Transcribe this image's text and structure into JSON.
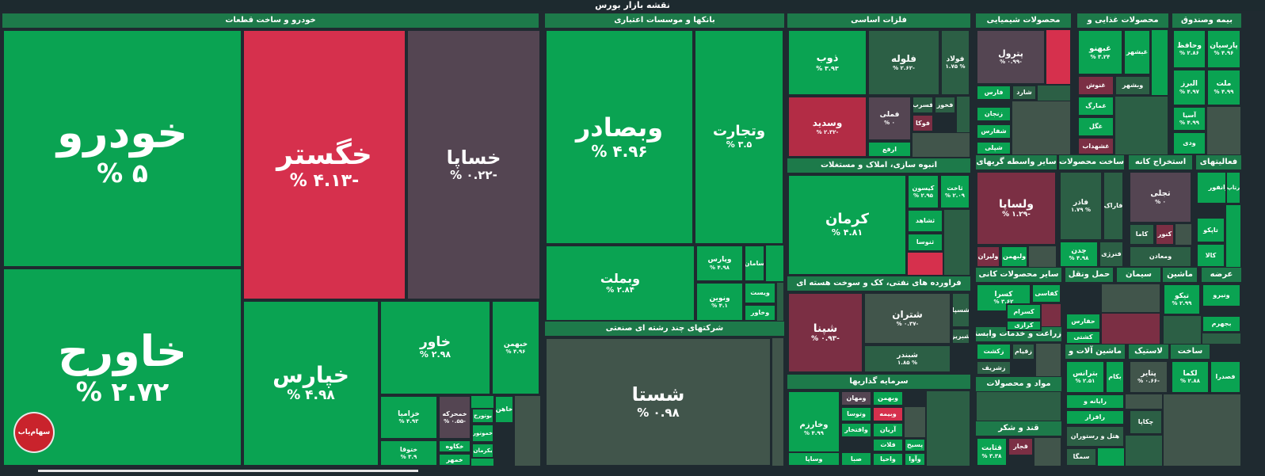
{
  "header": {
    "title": "نقشه بازار بورس"
  },
  "sectors": [
    {
      "id": "s1",
      "label": "خودرو و ساخت قطعات"
    },
    {
      "id": "s2",
      "label": "بانکها و موسسات اعتباری"
    },
    {
      "id": "s3",
      "label": "فلزات اساسی"
    },
    {
      "id": "s4",
      "label": "محصولات شیمیایی"
    },
    {
      "id": "s5",
      "label": "محصولات غذایی و"
    },
    {
      "id": "s6",
      "label": "بیمه وصندوق"
    },
    {
      "id": "s7",
      "label": "شرکتهای چند رشته ای صنعتی"
    },
    {
      "id": "s8",
      "label": "انبوه سازی، املاک و مستغلات"
    },
    {
      "id": "s9",
      "label": "سایر واسطه گریهای"
    },
    {
      "id": "s10",
      "label": "ساخت محصولات"
    },
    {
      "id": "s11",
      "label": "استخراج کانه"
    },
    {
      "id": "s12",
      "label": "فعالیتهای"
    },
    {
      "id": "s13",
      "label": "فراورده های نفتی، کک و سوخت هسته ای"
    },
    {
      "id": "s14",
      "label": "سایر محصولات کانی"
    },
    {
      "id": "s15",
      "label": "حمل ونقل"
    },
    {
      "id": "s16",
      "label": "سیمان"
    },
    {
      "id": "s17",
      "label": "ماشین"
    },
    {
      "id": "s18",
      "label": "عرضه"
    },
    {
      "id": "s19",
      "label": "زراعت و خدمات وابسته"
    },
    {
      "id": "s20",
      "label": "ماشین آلات و"
    },
    {
      "id": "s21",
      "label": "لاستیک"
    },
    {
      "id": "s22",
      "label": "ساخت"
    },
    {
      "id": "s23",
      "label": "مواد و محصولات"
    },
    {
      "id": "s24",
      "label": "سرمایه گذاریها"
    },
    {
      "id": "s25",
      "label": "قند و شکر"
    }
  ],
  "tiles": [
    {
      "id": "t1",
      "name": "خودرو",
      "pct": "% ۵",
      "color": "#0aa352"
    },
    {
      "id": "t2",
      "name": "خگستر",
      "pct": "% ۴.۱۳-",
      "color": "#d6304d"
    },
    {
      "id": "t3",
      "name": "خساپا",
      "pct": "% ۰.۲۲-",
      "color": "#544552"
    },
    {
      "id": "t4",
      "name": "خاورح",
      "pct": "% ۲.۷۲",
      "color": "#0aa352"
    },
    {
      "id": "t5",
      "name": "خپارس",
      "pct": "% ۴.۹۸",
      "color": "#0aa352"
    },
    {
      "id": "t6",
      "name": "خاور",
      "pct": "% ۲.۹۸",
      "color": "#0aa352"
    },
    {
      "id": "t7",
      "name": "خبهمن",
      "pct": "% ۴.۹۶",
      "color": "#0aa352"
    },
    {
      "id": "t8",
      "name": "خزامیا",
      "pct": "% ۴.۹۳",
      "color": "#0aa352"
    },
    {
      "id": "t9",
      "name": "خمحرکه",
      "pct": "% ۰.۵۵-",
      "color": "#544552"
    },
    {
      "id": "t10",
      "name": "خکاوه",
      "pct": "",
      "color": "#0aa352"
    },
    {
      "id": "t11",
      "name": "خموتور",
      "pct": "",
      "color": "#0aa352"
    },
    {
      "id": "t12",
      "name": "ختوقا",
      "pct": "% ۳.۹",
      "color": "#0aa352"
    },
    {
      "id": "t13",
      "name": "خمهر",
      "pct": "",
      "color": "#0aa352"
    },
    {
      "id": "t14",
      "name": "خاهن",
      "pct": "",
      "color": "#0aa352"
    },
    {
      "id": "t15",
      "name": "بوتورح",
      "pct": "",
      "color": "#0aa352"
    },
    {
      "id": "t16",
      "name": "بکرمان",
      "pct": "",
      "color": "#0aa352"
    },
    {
      "id": "t17",
      "name": "وبصادر",
      "pct": "% ۴.۹۶",
      "color": "#0aa352"
    },
    {
      "id": "t18",
      "name": "وتجارت",
      "pct": "% ۳.۵",
      "color": "#0aa352"
    },
    {
      "id": "t19",
      "name": "وبملت",
      "pct": "% ۲.۸۴",
      "color": "#0aa352"
    },
    {
      "id": "t20",
      "name": "وپارس",
      "pct": "% ۴.۹۸",
      "color": "#0aa352"
    },
    {
      "id": "t21",
      "name": "سامان",
      "pct": "",
      "color": "#0aa352"
    },
    {
      "id": "t22",
      "name": "ونوین",
      "pct": "% ۴.۱",
      "color": "#0aa352"
    },
    {
      "id": "t23",
      "name": "ویست",
      "pct": "",
      "color": "#0aa352"
    },
    {
      "id": "t24",
      "name": "وخاور",
      "pct": "",
      "color": "#0aa352"
    },
    {
      "id": "t25",
      "name": "شستا",
      "pct": "% ۰.۹۸",
      "color": "#41554b"
    },
    {
      "id": "t26",
      "name": "ذوب",
      "pct": "% ۳.۹۳",
      "color": "#0aa352"
    },
    {
      "id": "t27",
      "name": "فلوله",
      "pct": "% ۲.۶۲-",
      "color": "#2c5f45"
    },
    {
      "id": "t28",
      "name": "فولاد",
      "pct": "۱.۷۵ %",
      "color": "#2c5f45"
    },
    {
      "id": "t29",
      "name": "وسدید",
      "pct": "% ۲.۳۲-",
      "color": "#b32c45"
    },
    {
      "id": "t30",
      "name": "فملی",
      "pct": "% ۰",
      "color": "#544552"
    },
    {
      "id": "t31",
      "name": "فسرب",
      "pct": "",
      "color": "#2c5f45"
    },
    {
      "id": "t32",
      "name": "فخوز",
      "pct": "",
      "color": "#2c5f45"
    },
    {
      "id": "t33",
      "name": "فوکا",
      "pct": "",
      "color": "#7b2f44"
    },
    {
      "id": "t34",
      "name": "ارفع",
      "pct": "",
      "color": "#0aa352"
    },
    {
      "id": "t35",
      "name": "پترول",
      "pct": "% ۰.۹۹-",
      "color": "#544552"
    },
    {
      "id": "t36",
      "name": "فارس",
      "pct": "",
      "color": "#0aa352"
    },
    {
      "id": "t37",
      "name": "شارد",
      "pct": "",
      "color": "#2c5f45"
    },
    {
      "id": "t38",
      "name": "زنجان",
      "pct": "",
      "color": "#0aa352"
    },
    {
      "id": "t39",
      "name": "شفارس",
      "pct": "",
      "color": "#0aa352"
    },
    {
      "id": "t40",
      "name": "شپلی",
      "pct": "",
      "color": "#0aa352"
    },
    {
      "id": "t41",
      "name": "غبهنو",
      "pct": "% ۳.۲۴",
      "color": "#0aa352"
    },
    {
      "id": "t42",
      "name": "غبشهر",
      "pct": "",
      "color": "#0aa352"
    },
    {
      "id": "t43",
      "name": "غنوش",
      "pct": "",
      "color": "#7b2f44"
    },
    {
      "id": "t44",
      "name": "وبشهر",
      "pct": "",
      "color": "#2c5f45"
    },
    {
      "id": "t45",
      "name": "غمارگ",
      "pct": "",
      "color": "#0aa352"
    },
    {
      "id": "t46",
      "name": "غگل",
      "pct": "",
      "color": "#0aa352"
    },
    {
      "id": "t47",
      "name": "غشهداب",
      "pct": "",
      "color": "#7b2f44"
    },
    {
      "id": "t48",
      "name": "وحافظ",
      "pct": "% ۲.۸۶",
      "color": "#0aa352"
    },
    {
      "id": "t49",
      "name": "پارسیان",
      "pct": "% ۴.۹۶",
      "color": "#0aa352"
    },
    {
      "id": "t50",
      "name": "البرز",
      "pct": "% ۴.۹۷",
      "color": "#0aa352"
    },
    {
      "id": "t51",
      "name": "ملت",
      "pct": "% ۴.۹۹",
      "color": "#0aa352"
    },
    {
      "id": "t52",
      "name": "آسیا",
      "pct": "% ۴.۹۹",
      "color": "#0aa352"
    },
    {
      "id": "t53",
      "name": "ودی",
      "pct": "",
      "color": "#0aa352"
    },
    {
      "id": "t54",
      "name": "کرمان",
      "pct": "% ۴.۸۱",
      "color": "#0aa352"
    },
    {
      "id": "t55",
      "name": "کیسون",
      "pct": "% ۲.۹۵",
      "color": "#0aa352"
    },
    {
      "id": "t56",
      "name": "ثاخت",
      "pct": "% ۲.۰۹",
      "color": "#0aa352"
    },
    {
      "id": "t57",
      "name": "ثشاهد",
      "pct": "",
      "color": "#0aa352"
    },
    {
      "id": "t58",
      "name": "ثنوسا",
      "pct": "",
      "color": "#0aa352"
    },
    {
      "id": "t59",
      "name": "ولساپا",
      "pct": "% ۱.۲۹-",
      "color": "#7b2f44"
    },
    {
      "id": "t60",
      "name": "ولیران",
      "pct": "",
      "color": "#7b2f44"
    },
    {
      "id": "t61",
      "name": "ولبهمن",
      "pct": "",
      "color": "#0aa352"
    },
    {
      "id": "t62",
      "name": "فاذر",
      "pct": "۱.۷۹ %",
      "color": "#2c5f45"
    },
    {
      "id": "t63",
      "name": "فاراک",
      "pct": "",
      "color": "#2c5f45"
    },
    {
      "id": "t64",
      "name": "چدن",
      "pct": "% ۴.۹۸",
      "color": "#0aa352"
    },
    {
      "id": "t65",
      "name": "فنرژی",
      "pct": "",
      "color": "#2c5f45"
    },
    {
      "id": "t66",
      "name": "تجلی",
      "pct": "% ۰",
      "color": "#544552"
    },
    {
      "id": "t67",
      "name": "کاما",
      "pct": "",
      "color": "#2c5f45"
    },
    {
      "id": "t68",
      "name": "کنور",
      "pct": "",
      "color": "#7b2f44"
    },
    {
      "id": "t69",
      "name": "ومعادن",
      "pct": "",
      "color": "#2c5f45"
    },
    {
      "id": "t70",
      "name": "رانفور",
      "pct": "",
      "color": "#0aa352"
    },
    {
      "id": "t71",
      "name": "رتاپ",
      "pct": "",
      "color": "#0aa352"
    },
    {
      "id": "t72",
      "name": "تاپکو",
      "pct": "",
      "color": "#0aa352"
    },
    {
      "id": "t73",
      "name": "کالا",
      "pct": "",
      "color": "#0aa352"
    },
    {
      "id": "t74",
      "name": "شپنا",
      "pct": "% ۰.۹۳-",
      "color": "#7b2f44"
    },
    {
      "id": "t75",
      "name": "شتران",
      "pct": "% ۰.۳۷-",
      "color": "#41554b"
    },
    {
      "id": "t76",
      "name": "شسپا",
      "pct": "",
      "color": "#2c5f45"
    },
    {
      "id": "t77",
      "name": "شبریز",
      "pct": "",
      "color": "#2c5f45"
    },
    {
      "id": "t78",
      "name": "شبندر",
      "pct": "۱.۸۵ %",
      "color": "#2c5f45"
    },
    {
      "id": "t79",
      "name": "کسرا",
      "pct": "% ۳.۶۲",
      "color": "#0aa352"
    },
    {
      "id": "t80",
      "name": "کفاسی",
      "pct": "",
      "color": "#0aa352"
    },
    {
      "id": "t81",
      "name": "کسرام",
      "pct": "",
      "color": "#0aa352"
    },
    {
      "id": "t82",
      "name": "کرازی",
      "pct": "",
      "color": "#0aa352"
    },
    {
      "id": "t83",
      "name": "زکشت",
      "pct": "",
      "color": "#0aa352"
    },
    {
      "id": "t84",
      "name": "زقیام",
      "pct": "",
      "color": "#2c5f45"
    },
    {
      "id": "t85",
      "name": "زشریف",
      "pct": "",
      "color": "#2c5f45"
    },
    {
      "id": "t86",
      "name": "حفارس",
      "pct": "",
      "color": "#0aa352"
    },
    {
      "id": "t87",
      "name": "کشتی",
      "pct": "",
      "color": "#0aa352"
    },
    {
      "id": "t88",
      "name": "تیکو",
      "pct": "% ۲.۹۹",
      "color": "#0aa352"
    },
    {
      "id": "t89",
      "name": "ونیرو",
      "pct": "",
      "color": "#0aa352"
    },
    {
      "id": "t90",
      "name": "بجهرم",
      "pct": "",
      "color": "#0aa352"
    },
    {
      "id": "t91",
      "name": "رکیش",
      "pct": "",
      "color": "#0aa352"
    },
    {
      "id": "t92",
      "name": "بترانس",
      "pct": "% ۲.۵۱",
      "color": "#0aa352"
    },
    {
      "id": "t93",
      "name": "بکام",
      "pct": "",
      "color": "#0aa352"
    },
    {
      "id": "t94",
      "name": "پتایر",
      "pct": "% ۰.۶۶-",
      "color": "#41554b"
    },
    {
      "id": "t95",
      "name": "لکما",
      "pct": "% ۲.۸۸",
      "color": "#0aa352"
    },
    {
      "id": "t96",
      "name": "فصدرا",
      "pct": "",
      "color": "#0aa352"
    },
    {
      "id": "t97",
      "name": "رایانه و",
      "pct": "",
      "color": "#0aa352"
    },
    {
      "id": "t98",
      "name": "رافزار",
      "pct": "",
      "color": "#0aa352"
    },
    {
      "id": "t99",
      "name": "چکاپا",
      "pct": "",
      "color": "#2c5f45"
    },
    {
      "id": "t100",
      "name": "وخارزم",
      "pct": "% ۴.۹۹",
      "color": "#0aa352"
    },
    {
      "id": "t101",
      "name": "ومهان",
      "pct": "",
      "color": "#544552"
    },
    {
      "id": "t102",
      "name": "وبهمن",
      "pct": "",
      "color": "#0aa352"
    },
    {
      "id": "t103",
      "name": "وتوسا",
      "pct": "",
      "color": "#0aa352"
    },
    {
      "id": "t104",
      "name": "وبیمه",
      "pct": "",
      "color": "#d6304d"
    },
    {
      "id": "t105",
      "name": "وافتخار",
      "pct": "",
      "color": "#0aa352"
    },
    {
      "id": "t106",
      "name": "آریان",
      "pct": "",
      "color": "#0aa352"
    },
    {
      "id": "t107",
      "name": "ومعادن",
      "pct": "",
      "color": "#0aa352"
    },
    {
      "id": "t108",
      "name": "فلات",
      "pct": "",
      "color": "#0aa352"
    },
    {
      "id": "t109",
      "name": "پسیح",
      "pct": "",
      "color": "#0aa352"
    },
    {
      "id": "t110",
      "name": "وساپا",
      "pct": "",
      "color": "#0aa352"
    },
    {
      "id": "t111",
      "name": "صبا",
      "pct": "",
      "color": "#0aa352"
    },
    {
      "id": "t112",
      "name": "واحیا",
      "pct": "",
      "color": "#0aa352"
    },
    {
      "id": "t113",
      "name": "وآوا",
      "pct": "",
      "color": "#0aa352"
    },
    {
      "id": "t114",
      "name": "قثابت",
      "pct": "% ۳.۳۸",
      "color": "#0aa352"
    },
    {
      "id": "t115",
      "name": "قجار",
      "pct": "",
      "color": "#7b2f44"
    },
    {
      "id": "t116",
      "name": "هتل و رستوران",
      "pct": "",
      "color": "#2c5f45"
    },
    {
      "id": "t117",
      "name": "سمگا",
      "pct": "",
      "color": "#2c5f45"
    }
  ],
  "logo": {
    "text": "سهام‌یاب"
  }
}
